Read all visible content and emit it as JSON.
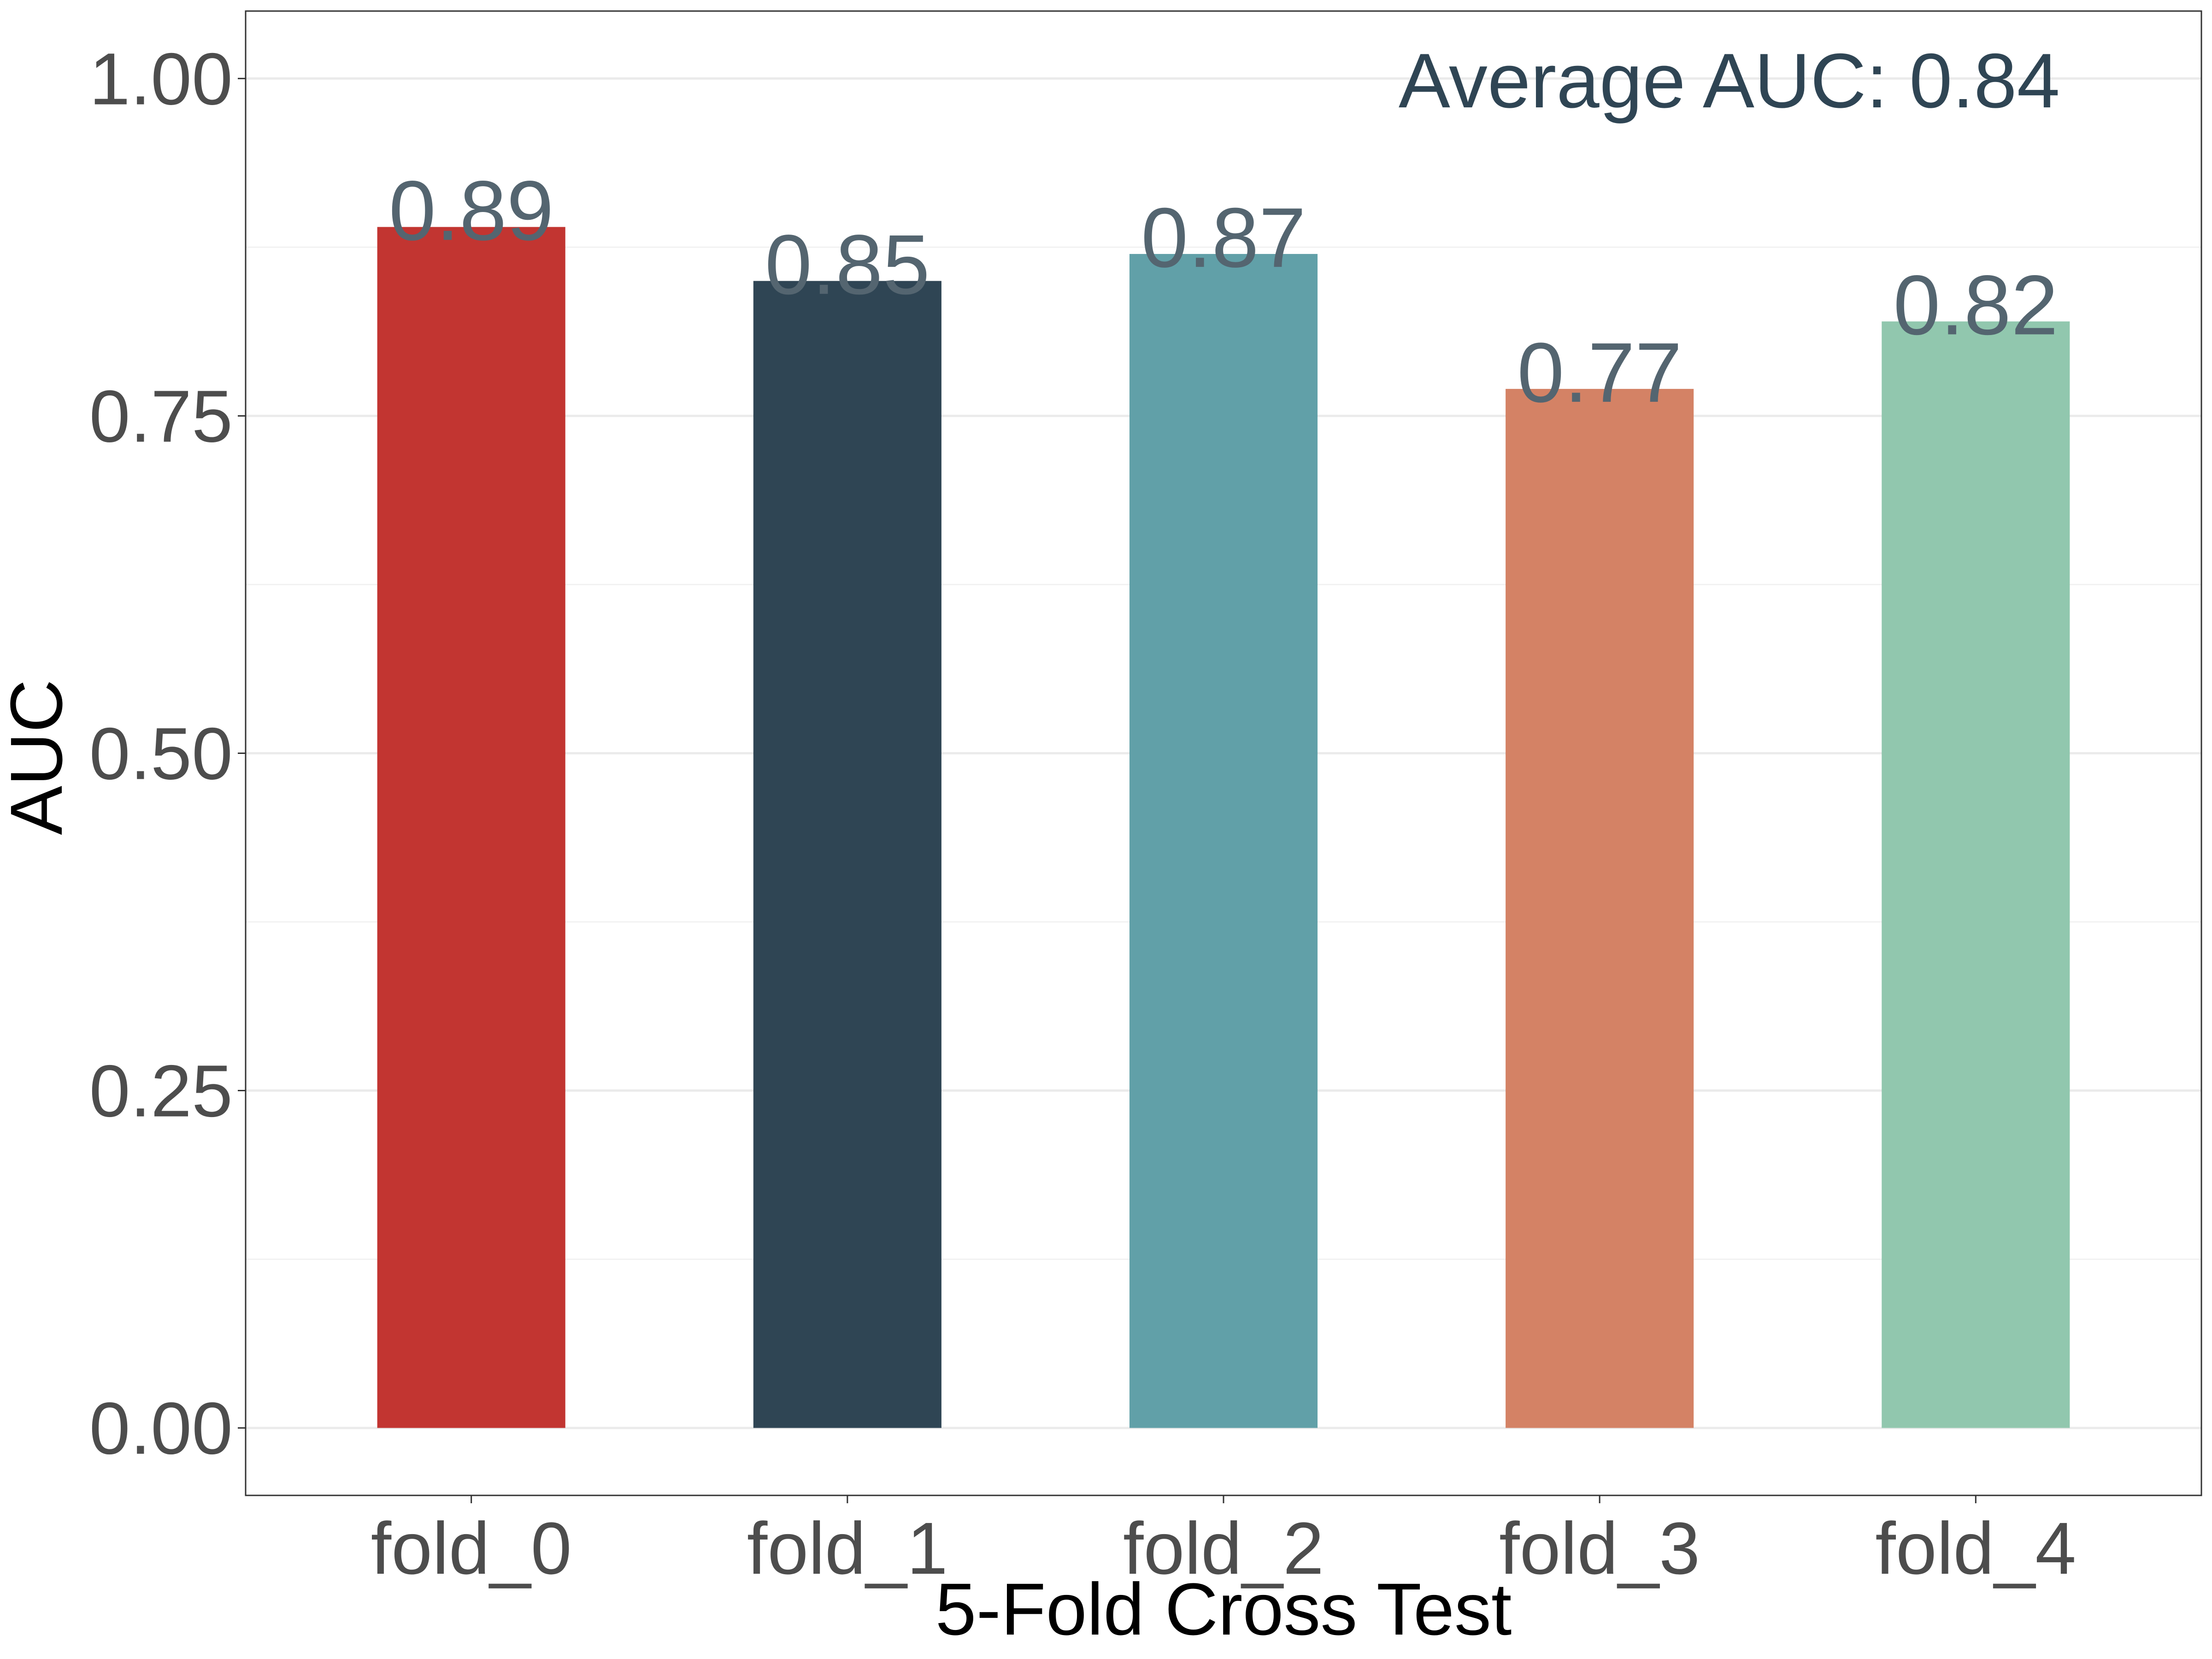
{
  "chart_data": {
    "type": "bar",
    "title": "",
    "xlabel": "5-Fold Cross Test",
    "ylabel": "AUC",
    "categories": [
      "fold_0",
      "fold_1",
      "fold_2",
      "fold_3",
      "fold_4"
    ],
    "values": [
      0.89,
      0.85,
      0.87,
      0.77,
      0.82
    ],
    "value_labels": [
      "0.89",
      "0.85",
      "0.87",
      "0.77",
      "0.82"
    ],
    "colors": [
      "#C23531",
      "#2F4554",
      "#61A0A8",
      "#D48265",
      "#91C7AE"
    ],
    "ylim": [
      -0.05,
      1.05
    ],
    "yticks": [
      0,
      0.25,
      0.5,
      0.75,
      1.0
    ],
    "ytick_labels": [
      "0.00",
      "0.25",
      "0.50",
      "0.75",
      "1.00"
    ],
    "grid": true,
    "legend": "none",
    "annotation": "Average AUC: 0.84",
    "annotation_color": "#2F4554",
    "value_label_color": "#546570"
  }
}
